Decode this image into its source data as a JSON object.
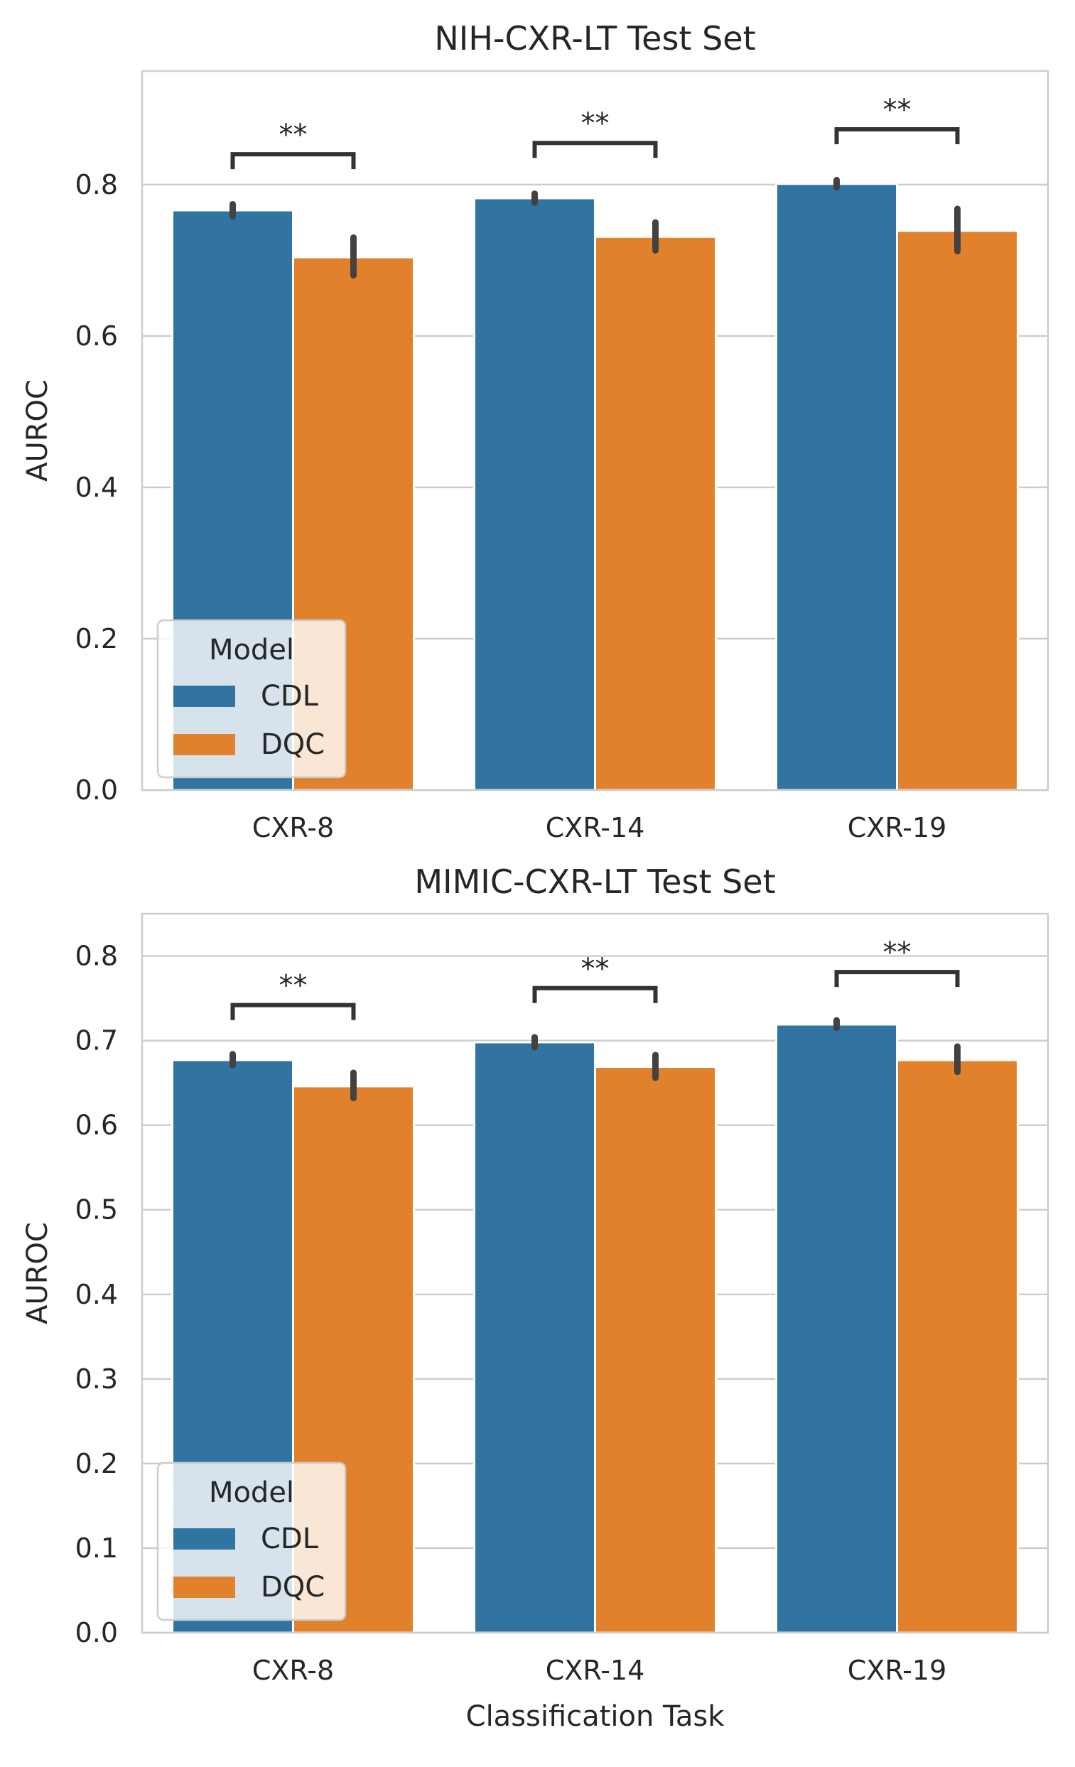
{
  "chart_data": [
    {
      "type": "bar",
      "title": "NIH-CXR-LT Test Set",
      "xlabel": "",
      "ylabel": "AUROC",
      "ylim": [
        0,
        0.95
      ],
      "yticks": [
        "0.0",
        "0.2",
        "0.4",
        "0.6",
        "0.8"
      ],
      "grid": true,
      "categories": [
        "CXR-8",
        "CXR-14",
        "CXR-19"
      ],
      "series": [
        {
          "name": "CDL",
          "color": "#3274a1",
          "values": [
            0.766,
            0.782,
            0.801
          ],
          "err_low": [
            0.758,
            0.776,
            0.796
          ],
          "err_high": [
            0.774,
            0.788,
            0.806
          ]
        },
        {
          "name": "DQC",
          "color": "#e1812c",
          "values": [
            0.704,
            0.731,
            0.739
          ],
          "err_low": [
            0.68,
            0.713,
            0.712
          ],
          "err_high": [
            0.73,
            0.75,
            0.768
          ]
        }
      ],
      "annotations": [
        "**",
        "**",
        "**"
      ],
      "annotation_y": [
        0.84,
        0.855,
        0.873
      ],
      "legend": {
        "title": "Model",
        "placement": "lower-left"
      }
    },
    {
      "type": "bar",
      "title": "MIMIC-CXR-LT Test Set",
      "xlabel": "Classification Task",
      "ylabel": "AUROC",
      "ylim": [
        0,
        0.85
      ],
      "yticks": [
        "0.0",
        "0.1",
        "0.2",
        "0.3",
        "0.4",
        "0.5",
        "0.6",
        "0.7",
        "0.8"
      ],
      "grid": true,
      "categories": [
        "CXR-8",
        "CXR-14",
        "CXR-19"
      ],
      "series": [
        {
          "name": "CDL",
          "color": "#3274a1",
          "values": [
            0.677,
            0.698,
            0.719
          ],
          "err_low": [
            0.671,
            0.692,
            0.715
          ],
          "err_high": [
            0.684,
            0.704,
            0.724
          ]
        },
        {
          "name": "DQC",
          "color": "#e1812c",
          "values": [
            0.646,
            0.669,
            0.677
          ],
          "err_low": [
            0.632,
            0.656,
            0.663
          ],
          "err_high": [
            0.662,
            0.683,
            0.693
          ]
        }
      ],
      "annotations": [
        "**",
        "**",
        "**"
      ],
      "annotation_y": [
        0.742,
        0.762,
        0.781
      ],
      "legend": {
        "title": "Model",
        "placement": "lower-left"
      }
    }
  ]
}
